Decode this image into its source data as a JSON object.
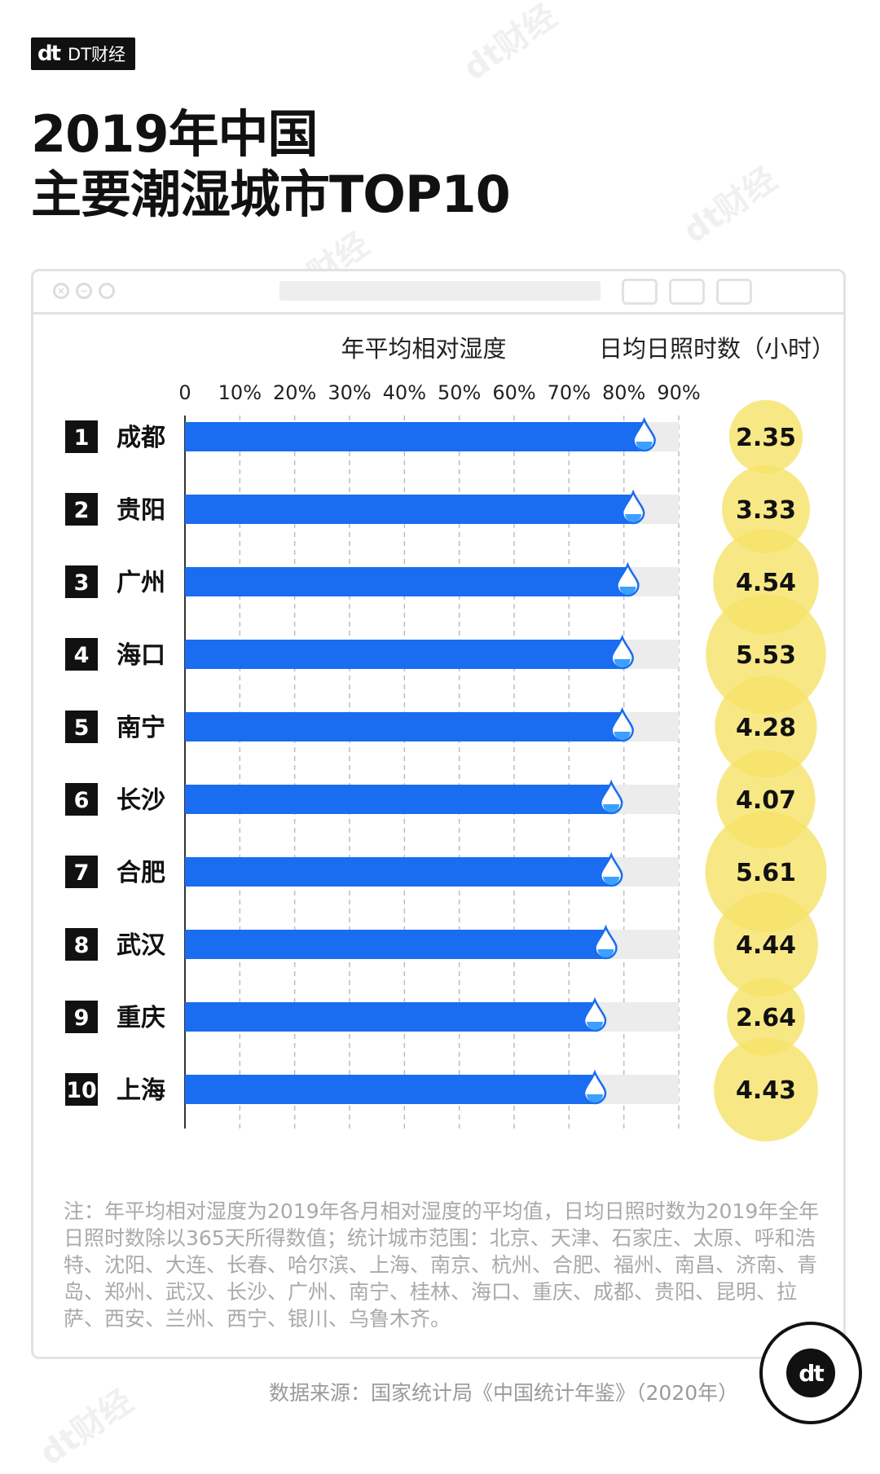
{
  "brand": {
    "logo": "dt",
    "name": "DT财经"
  },
  "title": {
    "line1": "2019年中国",
    "line2": "主要潮湿城市TOP10"
  },
  "watermark": "dt财经",
  "colors": {
    "bar": "#1a6cf0",
    "track": "#ececec",
    "sun": "#f6e36a",
    "rank_bg": "#111111",
    "grid": "#bdbdbd"
  },
  "chart_data": {
    "type": "bar",
    "orientation": "horizontal",
    "title": "年平均相对湿度",
    "secondary_title": "日均日照时数（小时）",
    "xlim": [
      0,
      90
    ],
    "ticks": [
      "0",
      "10%",
      "20%",
      "30%",
      "40%",
      "50%",
      "60%",
      "70%",
      "80%",
      "90%"
    ],
    "ranks": [
      "1",
      "2",
      "3",
      "4",
      "5",
      "6",
      "7",
      "8",
      "9",
      "10"
    ],
    "categories": [
      "成都",
      "贵阳",
      "广州",
      "海口",
      "南宁",
      "长沙",
      "合肥",
      "武汉",
      "重庆",
      "上海"
    ],
    "series": [
      {
        "name": "年平均相对湿度",
        "unit": "%",
        "values": [
          84,
          82,
          81,
          80,
          80,
          78,
          78,
          77,
          75,
          75
        ]
      },
      {
        "name": "日均日照时数（小时）",
        "unit": "小时",
        "values": [
          2.35,
          3.33,
          4.54,
          5.53,
          4.28,
          4.07,
          5.61,
          4.44,
          2.64,
          4.43
        ]
      }
    ],
    "sunshine_labels": [
      "2.35",
      "3.33",
      "4.54",
      "5.53",
      "4.28",
      "4.07",
      "5.61",
      "4.44",
      "2.64",
      "4.43"
    ]
  },
  "note": "注：年平均相对湿度为2019年各月相对湿度的平均值，日均日照时数为2019年全年日照时数除以365天所得数值；统计城市范围：北京、天津、石家庄、太原、呼和浩特、沈阳、大连、长春、哈尔滨、上海、南京、杭州、合肥、福州、南昌、济南、青岛、郑州、武汉、长沙、广州、南宁、桂林、海口、重庆、成都、贵阳、昆明、拉萨、西安、兰州、西宁、银川、乌鲁木齐。",
  "source": "数据来源：国家统计局《中国统计年鉴》（2020年）",
  "badge": {
    "logo": "dt"
  }
}
